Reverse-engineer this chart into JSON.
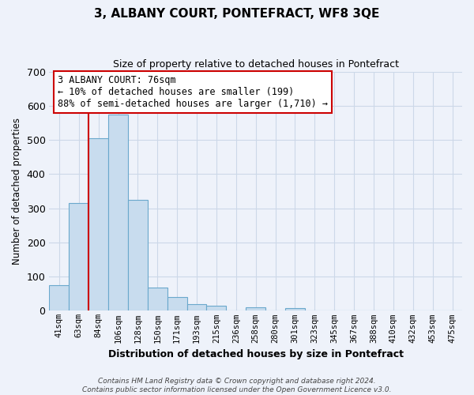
{
  "title": "3, ALBANY COURT, PONTEFRACT, WF8 3QE",
  "subtitle": "Size of property relative to detached houses in Pontefract",
  "xlabel": "Distribution of detached houses by size in Pontefract",
  "ylabel": "Number of detached properties",
  "bar_labels": [
    "41sqm",
    "63sqm",
    "84sqm",
    "106sqm",
    "128sqm",
    "150sqm",
    "171sqm",
    "193sqm",
    "215sqm",
    "236sqm",
    "258sqm",
    "280sqm",
    "301sqm",
    "323sqm",
    "345sqm",
    "367sqm",
    "388sqm",
    "410sqm",
    "432sqm",
    "453sqm",
    "475sqm"
  ],
  "bar_values": [
    75,
    315,
    505,
    575,
    325,
    68,
    40,
    20,
    15,
    0,
    10,
    0,
    7,
    0,
    0,
    0,
    0,
    0,
    0,
    0,
    0
  ],
  "bar_color": "#c8dcee",
  "bar_edge_color": "#6aa8cc",
  "ylim": [
    0,
    700
  ],
  "yticks": [
    0,
    100,
    200,
    300,
    400,
    500,
    600,
    700
  ],
  "vline_color": "#cc0000",
  "annotation_text": "3 ALBANY COURT: 76sqm\n← 10% of detached houses are smaller (199)\n88% of semi-detached houses are larger (1,710) →",
  "annotation_box_color": "#ffffff",
  "annotation_box_edge": "#cc0000",
  "footer_text": "Contains HM Land Registry data © Crown copyright and database right 2024.\nContains public sector information licensed under the Open Government Licence v3.0.",
  "grid_color": "#ccd8e8",
  "background_color": "#eef2fa",
  "title_fontsize": 11,
  "subtitle_fontsize": 9
}
